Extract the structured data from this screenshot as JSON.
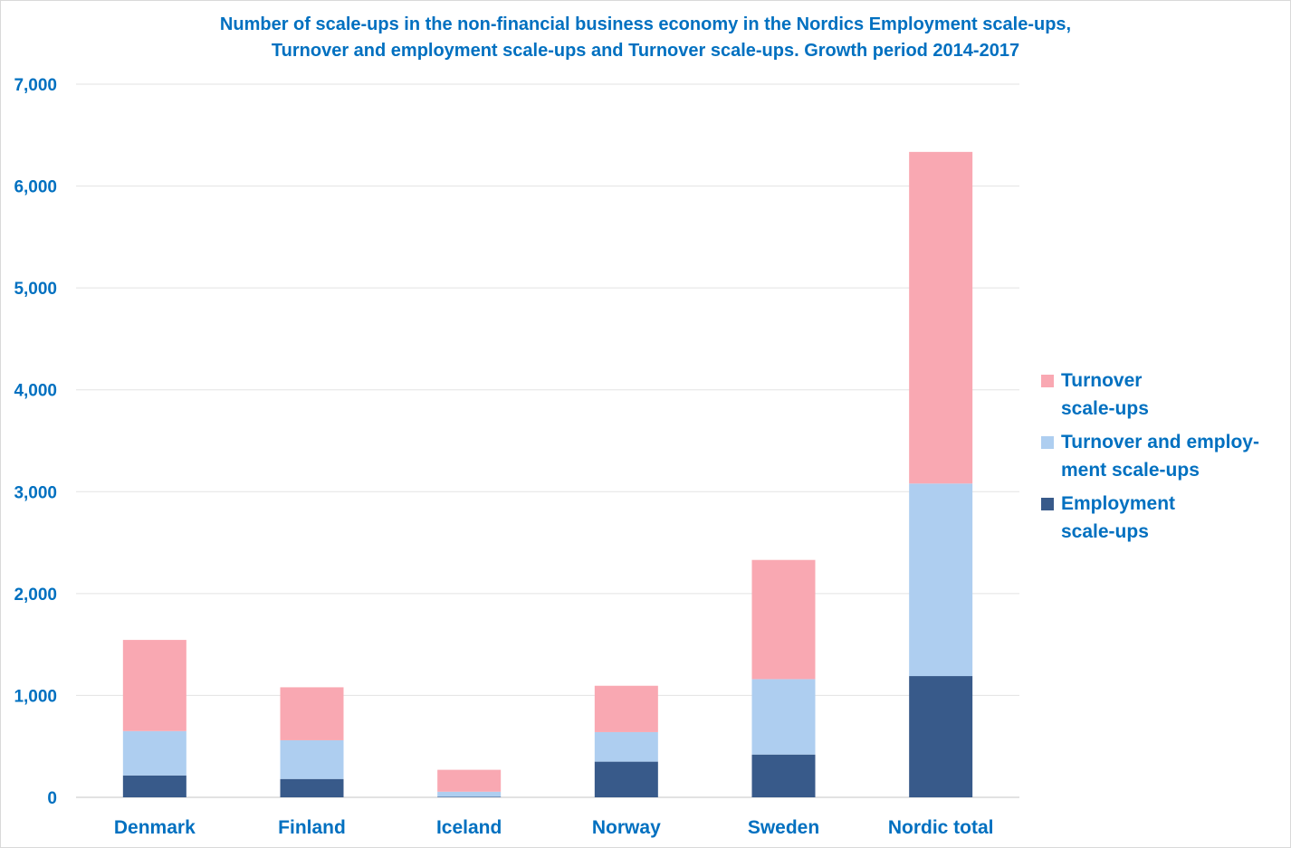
{
  "chart_data": {
    "type": "bar",
    "stacked": true,
    "title_lines": [
      "Number of scale-ups in the non-financial business economy in the Nordics Employment scale-ups,",
      "Turnover and employment scale-ups and Turnover scale-ups. Growth period 2014-2017"
    ],
    "categories": [
      "Denmark",
      "Finland",
      "Iceland",
      "Norway",
      "Sweden",
      "Nordic total"
    ],
    "series": [
      {
        "name": "Employment scale-ups",
        "legend_lines": [
          "Employment",
          "scale-ups"
        ],
        "color": "#385a8a",
        "values": [
          215,
          180,
          5,
          350,
          420,
          1190
        ]
      },
      {
        "name": "Turnover and employment scale-ups",
        "legend_lines": [
          "Turnover and employ-",
          "ment scale-ups"
        ],
        "color": "#aecef0",
        "values": [
          435,
          380,
          50,
          290,
          740,
          1890
        ]
      },
      {
        "name": "Turnover scale-ups",
        "legend_lines": [
          "Turnover",
          "scale-ups"
        ],
        "color": "#f9a8b2",
        "values": [
          895,
          520,
          215,
          455,
          1170,
          3255
        ]
      }
    ],
    "yticks": [
      "0",
      "1,000",
      "2,000",
      "3,000",
      "4,000",
      "5,000",
      "6,000",
      "7,000"
    ],
    "ylim": [
      0,
      7000
    ],
    "xlabel": "",
    "ylabel": "",
    "grid": true,
    "legend_position": "right"
  }
}
